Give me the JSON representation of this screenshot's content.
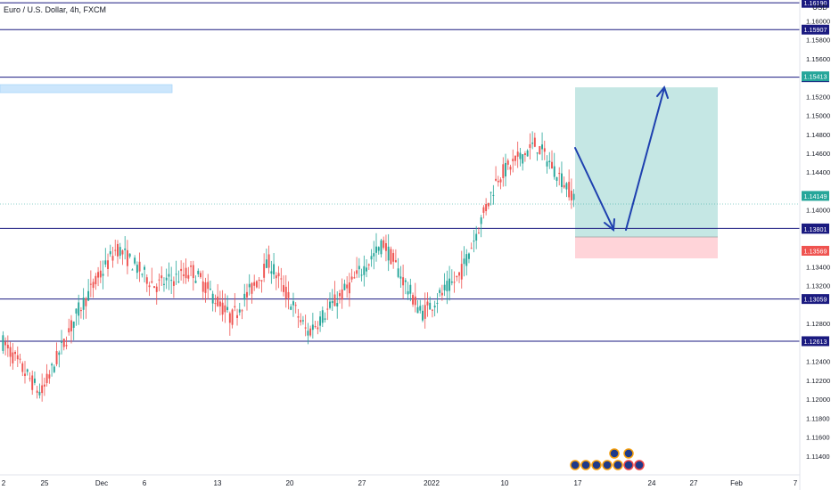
{
  "header": {
    "title": "Euro / U.S. Dollar, 4h, FXCM",
    "currency": "USD"
  },
  "chart_data": {
    "type": "candlestick",
    "title": "Euro / U.S. Dollar, 4h, FXCM",
    "y_unit": "USD",
    "ylim": [
      1.112,
      1.1622
    ],
    "y_ticks": [
      "1.16000",
      "1.15800",
      "1.15600",
      "1.15200",
      "1.15000",
      "1.14800",
      "1.14600",
      "1.14400",
      "1.14000",
      "1.13400",
      "1.13200",
      "1.12800",
      "1.12400",
      "1.12200",
      "1.12000",
      "1.11800",
      "1.11600",
      "1.11400"
    ],
    "x_ticks": [
      "2",
      "25",
      "Dec",
      "6",
      "13",
      "20",
      "27",
      "2022",
      "10",
      "17",
      "24",
      "27",
      "Feb",
      "7"
    ],
    "horizontal_levels": [
      {
        "value": 1.1619,
        "label": "1.16190",
        "color": "#1a1a80"
      },
      {
        "value": 1.15907,
        "label": "1.15907",
        "color": "#1a1a80"
      },
      {
        "value": 1.15404,
        "label": "1.15404",
        "color": "#1a1a80"
      },
      {
        "value": 1.13805,
        "label": "1.13805",
        "color": "#1a1a80"
      },
      {
        "value": 1.13059,
        "label": "1.13059",
        "color": "#1a1a80"
      },
      {
        "value": 1.12613,
        "label": "1.12613",
        "color": "#1a1a80"
      }
    ],
    "price_labels": [
      {
        "value": 1.15413,
        "label": "1.15413",
        "color": "#26a69a"
      },
      {
        "value": 1.14149,
        "label": "1.14149",
        "color": "#26a69a"
      },
      {
        "value": 1.13801,
        "label": "1.13801",
        "color": "#1a1a80"
      },
      {
        "value": 1.13569,
        "label": "1.13569",
        "color": "#ef5350"
      }
    ],
    "position": {
      "type": "long",
      "entry": 1.13801,
      "target": 1.15413,
      "stop": 1.13569,
      "from": "Jan 15",
      "to": "Jan 28"
    },
    "projection_path": [
      {
        "date": "Jan 15",
        "price": 1.1475
      },
      {
        "date": "Jan 20",
        "price": 1.1385
      },
      {
        "date": "Jan 22",
        "price": 1.139
      },
      {
        "date": "Jan 26",
        "price": 1.1541
      }
    ],
    "candles_approx": [
      {
        "date": "Nov 22",
        "open": 1.1275,
        "high": 1.129,
        "low": 1.125,
        "close": 1.126
      },
      {
        "date": "Nov 24",
        "open": 1.122,
        "high": 1.124,
        "low": 1.119,
        "close": 1.1205
      },
      {
        "date": "Nov 26",
        "open": 1.121,
        "high": 1.131,
        "low": 1.12,
        "close": 1.1295
      },
      {
        "date": "Nov 30",
        "open": 1.13,
        "high": 1.1385,
        "low": 1.129,
        "close": 1.136
      },
      {
        "date": "Dec 3",
        "open": 1.1315,
        "high": 1.135,
        "low": 1.13,
        "close": 1.132
      },
      {
        "date": "Dec 8",
        "open": 1.13,
        "high": 1.1355,
        "low": 1.127,
        "close": 1.1335
      },
      {
        "date": "Dec 14",
        "open": 1.128,
        "high": 1.131,
        "low": 1.123,
        "close": 1.1285
      },
      {
        "date": "Dec 16",
        "open": 1.129,
        "high": 1.136,
        "low": 1.128,
        "close": 1.1345
      },
      {
        "date": "Dec 20",
        "open": 1.128,
        "high": 1.1305,
        "low": 1.124,
        "close": 1.127
      },
      {
        "date": "Dec 24",
        "open": 1.132,
        "high": 1.134,
        "low": 1.13,
        "close": 1.1315
      },
      {
        "date": "Dec 31",
        "open": 1.134,
        "high": 1.1385,
        "low": 1.132,
        "close": 1.1365
      },
      {
        "date": "Jan 4",
        "open": 1.13,
        "high": 1.132,
        "low": 1.1275,
        "close": 1.129
      },
      {
        "date": "Jan 10",
        "open": 1.131,
        "high": 1.136,
        "low": 1.1295,
        "close": 1.133
      },
      {
        "date": "Jan 12",
        "open": 1.137,
        "high": 1.1445,
        "low": 1.1365,
        "close": 1.1435
      },
      {
        "date": "Jan 13",
        "open": 1.145,
        "high": 1.1482,
        "low": 1.144,
        "close": 1.147
      },
      {
        "date": "Jan 14",
        "open": 1.1445,
        "high": 1.1455,
        "low": 1.14,
        "close": 1.1415
      }
    ]
  }
}
